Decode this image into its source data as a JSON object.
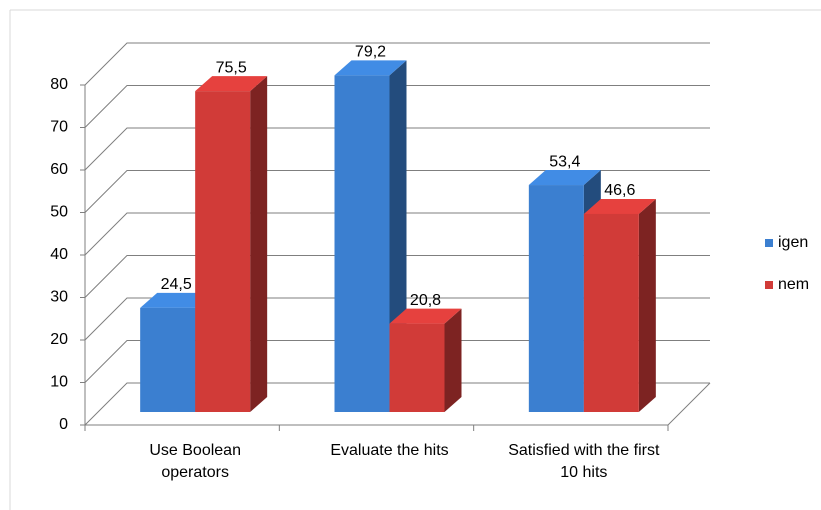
{
  "chart_data": {
    "type": "bar3d",
    "categories": [
      "Use Boolean operators",
      "Evaluate the hits",
      "Satisfied with the first 10 hits"
    ],
    "series": [
      {
        "name": "igen",
        "color": "#3b7fd0",
        "values": [
          24.5,
          79.2,
          53.4
        ],
        "value_labels": [
          "24,5",
          "79,2",
          "53,4"
        ]
      },
      {
        "name": "nem",
        "color": "#d13b38",
        "values": [
          75.5,
          20.8,
          46.6
        ],
        "value_labels": [
          "75,5",
          "20,8",
          "46,6"
        ]
      }
    ],
    "ylim": [
      0,
      80
    ],
    "yticks": [
      0,
      10,
      20,
      30,
      40,
      50,
      60,
      70,
      80
    ],
    "grid": true,
    "legend": "right"
  }
}
